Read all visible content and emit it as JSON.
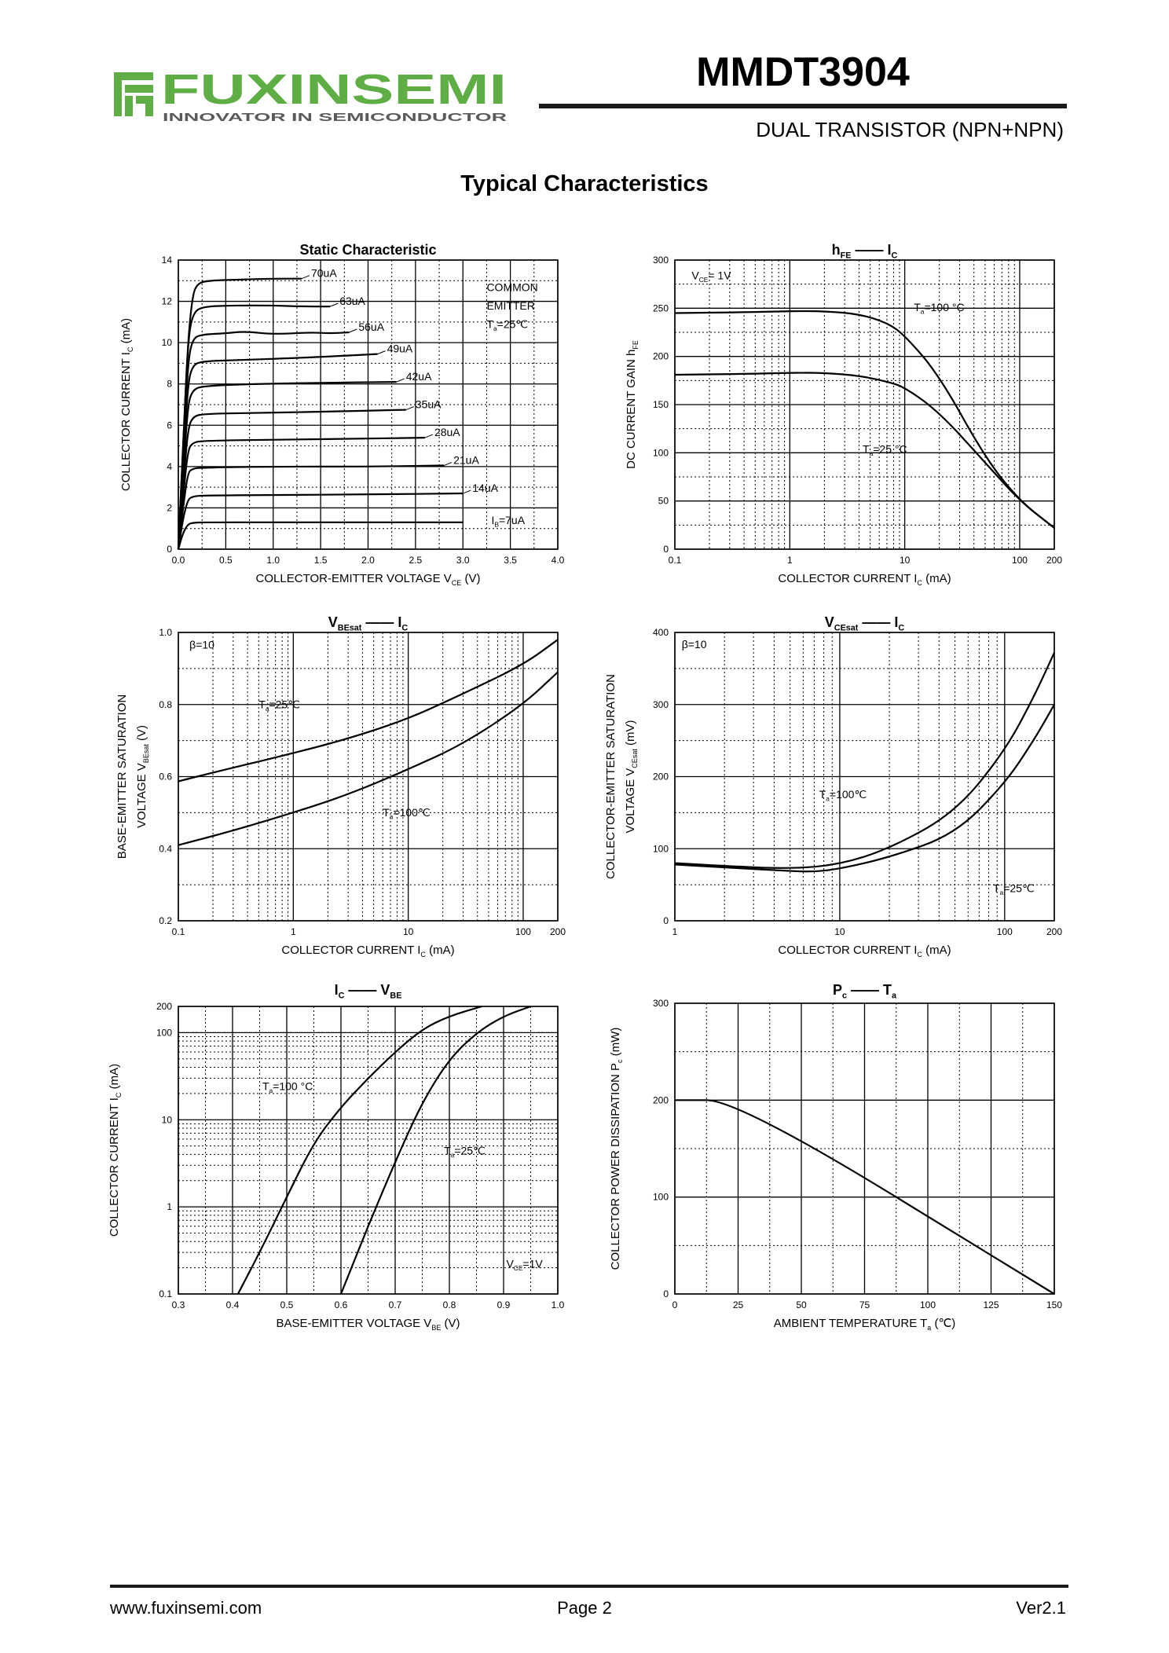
{
  "header": {
    "brand": "FUXINSEMI",
    "tagline": "INNOVATOR IN SEMICONDUCTOR",
    "part_number": "MMDT3904",
    "subtitle": "DUAL TRANSISTOR (NPN+NPN)"
  },
  "section_title": "Typical Characteristics",
  "footer": {
    "url": "www.fuxinsemi.com",
    "page": "Page 2",
    "version": "Ver2.1"
  },
  "colors": {
    "logo_green": "#5fae45",
    "logo_gray": "#5a5a5a",
    "line": "#1a1a1a"
  },
  "chart_data": [
    {
      "id": "static",
      "type": "line",
      "title_parts": [
        "Static Characteristic"
      ],
      "xlabel": "COLLECTOR-EMITTER VOLTAGE",
      "xsym": "V",
      "xsub": "CE",
      "xunit": "(V)",
      "ylabel": "COLLECTOR CURRENT",
      "ysym": "I",
      "ysub": "C",
      "yunit": "(mA)",
      "xscale": "linear",
      "xlim": [
        0,
        4.0
      ],
      "xticks": [
        0,
        0.5,
        1.0,
        1.5,
        2.0,
        2.5,
        3.0,
        3.5,
        4.0
      ],
      "xtick_labels": [
        "0.0",
        "0.5",
        "1.0",
        "1.5",
        "2.0",
        "2.5",
        "3.0",
        "3.5",
        "4.0"
      ],
      "yscale": "linear",
      "ylim": [
        0,
        14
      ],
      "yticks": [
        0,
        2,
        4,
        6,
        8,
        10,
        12,
        14
      ],
      "ytick_labels": [
        "0",
        "2",
        "4",
        "6",
        "8",
        "10",
        "12",
        "14"
      ],
      "annotations": [
        "COMMON",
        "EMITTER",
        "T",
        "a",
        "=25℃"
      ],
      "series": [
        {
          "label": "70uA",
          "x": [
            0,
            0.05,
            0.1,
            0.15,
            0.2,
            0.3,
            0.6,
            1.0,
            1.3
          ],
          "y": [
            0,
            5,
            10,
            12.3,
            12.85,
            13.0,
            13.05,
            13.1,
            13.1
          ]
        },
        {
          "label": "63uA",
          "x": [
            0,
            0.05,
            0.1,
            0.15,
            0.25,
            0.6,
            1.0,
            1.3,
            1.6
          ],
          "y": [
            0,
            5,
            10,
            11.4,
            11.75,
            11.8,
            11.8,
            11.75,
            11.75
          ]
        },
        {
          "label": "56uA",
          "x": [
            0,
            0.05,
            0.1,
            0.15,
            0.25,
            0.5,
            0.7,
            1.0,
            1.4,
            1.6,
            1.8
          ],
          "y": [
            0,
            4.5,
            9,
            10.2,
            10.4,
            10.45,
            10.55,
            10.4,
            10.5,
            10.45,
            10.5
          ]
        },
        {
          "label": "49uA",
          "x": [
            0,
            0.05,
            0.1,
            0.15,
            0.25,
            0.6,
            1.2,
            1.7,
            2.1
          ],
          "y": [
            0,
            4,
            8,
            8.9,
            9.1,
            9.15,
            9.25,
            9.35,
            9.45
          ]
        },
        {
          "label": "42uA",
          "x": [
            0,
            0.05,
            0.1,
            0.15,
            0.25,
            0.8,
            1.4,
            2.3
          ],
          "y": [
            0,
            3.5,
            7,
            7.7,
            7.9,
            8.0,
            8.05,
            8.1
          ]
        },
        {
          "label": "35uA",
          "x": [
            0,
            0.05,
            0.1,
            0.15,
            0.25,
            0.8,
            1.5,
            2.4
          ],
          "y": [
            0,
            3,
            5.8,
            6.4,
            6.55,
            6.6,
            6.65,
            6.75
          ]
        },
        {
          "label": "28uA",
          "x": [
            0,
            0.05,
            0.1,
            0.15,
            0.25,
            1.0,
            2.0,
            2.6
          ],
          "y": [
            0,
            2.5,
            4.8,
            5.15,
            5.25,
            5.3,
            5.35,
            5.4
          ]
        },
        {
          "label": "21uA",
          "x": [
            0,
            0.05,
            0.1,
            0.15,
            0.25,
            1.0,
            2.0,
            2.8
          ],
          "y": [
            0,
            2,
            3.7,
            3.9,
            3.95,
            4.0,
            4.0,
            4.05
          ]
        },
        {
          "label": "14uA",
          "x": [
            0,
            0.05,
            0.1,
            0.15,
            0.25,
            1.0,
            2.0,
            3.0
          ],
          "y": [
            0,
            1.5,
            2.4,
            2.55,
            2.6,
            2.62,
            2.65,
            2.7
          ]
        },
        {
          "label": "7uA",
          "x": [
            0,
            0.05,
            0.1,
            0.15,
            0.25,
            1.0,
            2.0,
            3.0
          ],
          "y": [
            0,
            0.8,
            1.2,
            1.28,
            1.3,
            1.3,
            1.3,
            1.3
          ]
        }
      ]
    },
    {
      "id": "hfe",
      "type": "line",
      "title_parts": [
        "h",
        "FE",
        "——",
        "I",
        "C"
      ],
      "xlabel": "COLLECTOR CURRENT",
      "xsym": "I",
      "xsub": "C",
      "xunit": "(mA)",
      "ylabel": "DC CURRENT GAIN",
      "ysym": "h",
      "ysub": "FE",
      "yunit": "",
      "xscale": "log",
      "xlim": [
        0.1,
        200
      ],
      "xticks": [
        0.1,
        1,
        10,
        100,
        200
      ],
      "xtick_labels": [
        "0.1",
        "1",
        "10",
        "100",
        "200"
      ],
      "yscale": "linear",
      "ylim": [
        0,
        300
      ],
      "yticks": [
        0,
        50,
        100,
        150,
        200,
        250,
        300
      ],
      "ytick_labels": [
        "0",
        "50",
        "100",
        "150",
        "200",
        "250",
        "300"
      ],
      "annotations": [
        "V",
        "CE",
        "= 1V"
      ],
      "series": [
        {
          "label": "T",
          "label_sub": "a",
          "label_rest": "=100 °C",
          "x": [
            0.1,
            0.5,
            1,
            2,
            4,
            7,
            10,
            20,
            50,
            100,
            200
          ],
          "y": [
            245,
            246,
            247,
            247,
            244,
            235,
            222,
            180,
            95,
            50,
            22
          ]
        },
        {
          "label": "T",
          "label_sub": "a",
          "label_rest": "=25 °C",
          "x": [
            0.1,
            0.5,
            1,
            2,
            4,
            7,
            10,
            20,
            50,
            100,
            200
          ],
          "y": [
            181,
            182,
            183,
            183,
            180,
            174,
            168,
            142,
            90,
            50,
            22
          ]
        }
      ]
    },
    {
      "id": "vbesat",
      "type": "line",
      "title_parts": [
        "V",
        "BEsat",
        "——",
        "I",
        "C"
      ],
      "xlabel": "COLLECTOR CURRENT",
      "xsym": "I",
      "xsub": "C",
      "xunit": "(mA)",
      "ylabel": "BASE-EMITTER SATURATION",
      "ylabel2": "VOLTAGE",
      "ysym": "V",
      "ysub": "BEsat",
      "yunit": "(V)",
      "xscale": "log",
      "xlim": [
        0.1,
        200
      ],
      "xticks": [
        0.1,
        1,
        10,
        100,
        200
      ],
      "xtick_labels": [
        "0.1",
        "1",
        "10",
        "100",
        "200"
      ],
      "yscale": "linear",
      "ylim": [
        0.2,
        1.0
      ],
      "yticks": [
        0.2,
        0.4,
        0.6,
        0.8,
        1.0
      ],
      "ytick_labels": [
        "0.2",
        "0.4",
        "0.6",
        "0.8",
        "1.0"
      ],
      "annotations": [
        "β=10"
      ],
      "series": [
        {
          "label": "T",
          "label_sub": "a",
          "label_rest": "=25℃",
          "x": [
            0.1,
            0.3,
            1,
            3,
            10,
            30,
            100,
            200
          ],
          "y": [
            0.587,
            0.625,
            0.665,
            0.705,
            0.76,
            0.83,
            0.91,
            0.98
          ]
        },
        {
          "label": "T",
          "label_sub": "a",
          "label_rest": "=100℃",
          "x": [
            0.1,
            0.3,
            1,
            3,
            10,
            30,
            100,
            200
          ],
          "y": [
            0.41,
            0.45,
            0.5,
            0.55,
            0.62,
            0.69,
            0.8,
            0.89
          ]
        }
      ]
    },
    {
      "id": "vcesat",
      "type": "line",
      "title_parts": [
        "V",
        "CEsat",
        "——",
        "I",
        "C"
      ],
      "xlabel": "COLLECTOR CURRENT",
      "xsym": "I",
      "xsub": "C",
      "xunit": "(mA)",
      "ylabel": "COLLECTOR-EMITTER SATURATION",
      "ylabel2": "VOLTAGE",
      "ysym": "V",
      "ysub": "CEsat",
      "yunit": "(mV)",
      "xscale": "log",
      "xlim": [
        1,
        200
      ],
      "xticks": [
        1,
        10,
        100,
        200
      ],
      "xtick_labels": [
        "1",
        "10",
        "100",
        "200"
      ],
      "yscale": "linear",
      "ylim": [
        0,
        400
      ],
      "yticks": [
        0,
        100,
        200,
        300,
        400
      ],
      "ytick_labels": [
        "0",
        "100",
        "200",
        "300",
        "400"
      ],
      "annotations": [
        "β=10"
      ],
      "series": [
        {
          "label": "T",
          "label_sub": "a",
          "label_rest": "=100℃",
          "x": [
            1,
            2,
            5,
            10,
            20,
            50,
            100,
            150,
            200
          ],
          "y": [
            80,
            76,
            72,
            78,
            100,
            150,
            235,
            310,
            372
          ]
        },
        {
          "label": "T",
          "label_sub": "a",
          "label_rest": "=25℃",
          "x": [
            1,
            2,
            5,
            7,
            10,
            20,
            50,
            100,
            150,
            200
          ],
          "y": [
            78,
            74,
            69,
            68,
            72,
            88,
            120,
            190,
            250,
            300
          ]
        }
      ]
    },
    {
      "id": "icvbe",
      "type": "line",
      "title_parts": [
        "I",
        "C",
        "——",
        "V",
        "BE"
      ],
      "xlabel": "BASE-EMITTER VOLTAGE",
      "xsym": "V",
      "xsub": "BE",
      "xunit": "(V)",
      "ylabel": "COLLECTOR CURRENT",
      "ysym": "I",
      "ysub": "C",
      "yunit": "(mA)",
      "xscale": "linear",
      "xlim": [
        0.3,
        1.0
      ],
      "xticks": [
        0.3,
        0.4,
        0.5,
        0.6,
        0.7,
        0.8,
        0.9,
        1.0
      ],
      "xtick_labels": [
        "0.3",
        "0.4",
        "0.5",
        "0.6",
        "0.7",
        "0.8",
        "0.9",
        "1.0"
      ],
      "yscale": "log",
      "ylim": [
        0.1,
        200
      ],
      "yticks": [
        0.1,
        1,
        10,
        100,
        200
      ],
      "ytick_labels": [
        "0.1",
        "1",
        "10",
        "100",
        "200"
      ],
      "annotations": [
        "V",
        "CE",
        "=1V"
      ],
      "series": [
        {
          "label": "T",
          "label_sub": "a",
          "label_rest": "=100 °C",
          "x": [
            0.41,
            0.45,
            0.5,
            0.55,
            0.6,
            0.65,
            0.7,
            0.75,
            0.8,
            0.86
          ],
          "y": [
            0.1,
            0.3,
            1.3,
            5.5,
            14,
            30,
            60,
            110,
            155,
            200
          ]
        },
        {
          "label": "T",
          "label_sub": "a",
          "label_rest": "=25℃",
          "x": [
            0.6,
            0.65,
            0.7,
            0.75,
            0.8,
            0.85,
            0.9,
            0.95
          ],
          "y": [
            0.1,
            0.6,
            3.3,
            16,
            50,
            100,
            155,
            200
          ]
        }
      ]
    },
    {
      "id": "pcta",
      "type": "line",
      "title_parts": [
        "P",
        "c",
        "——",
        "T",
        "a"
      ],
      "xlabel": "AMBIENT TEMPERATURE",
      "xsym": "T",
      "xsub": "a",
      "xunit": "(℃)",
      "ylabel": "COLLECTOR POWER DISSIPATION",
      "ysym": "P",
      "ysub": "c",
      "yunit": "(mW)",
      "xscale": "linear",
      "xlim": [
        0,
        150
      ],
      "xticks": [
        0,
        25,
        50,
        75,
        100,
        125,
        150
      ],
      "xtick_labels": [
        "0",
        "25",
        "50",
        "75",
        "100",
        "125",
        "150"
      ],
      "yscale": "linear",
      "ylim": [
        0,
        300
      ],
      "yticks": [
        0,
        100,
        200,
        300
      ],
      "ytick_labels": [
        "0",
        "100",
        "200",
        "300"
      ],
      "annotations": [],
      "series": [
        {
          "label": "",
          "x": [
            0,
            25,
            150
          ],
          "y": [
            200,
            200,
            0
          ]
        }
      ]
    }
  ]
}
